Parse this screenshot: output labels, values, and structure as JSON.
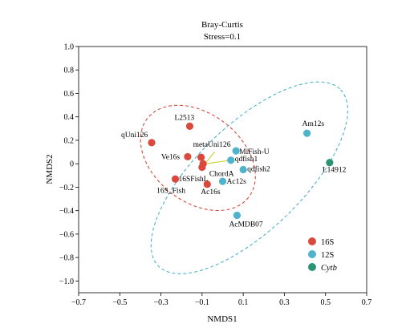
{
  "chart_data": {
    "type": "scatter",
    "title": "Bray-Curtis",
    "subtitle": "Stress=0.1",
    "xlabel": "NMDS1",
    "ylabel": "NMDS2",
    "xlim": [
      -0.7,
      0.7
    ],
    "ylim": [
      -1.1,
      1.0
    ],
    "xticks": [
      "-0.7",
      "-0.5",
      "-0.3",
      "-0.1",
      "0.1",
      "0.3",
      "0.5",
      "0.7"
    ],
    "yticks": [
      "1.0",
      "0.8",
      "0.6",
      "0.4",
      "0.2",
      "0",
      "-0.2",
      "-0.4",
      "-0.6",
      "-0.8",
      "-1.0"
    ],
    "grid": false,
    "legend_position": "bottom-right",
    "colors": {
      "16S": "#d94a3d",
      "12S": "#4fb3cc",
      "Cytb": "#2a9474"
    },
    "legend": [
      {
        "name": "16S",
        "italic": false
      },
      {
        "name": "12S",
        "italic": false
      },
      {
        "name": "Cytb",
        "italic": true
      }
    ],
    "series": [
      {
        "name": "16S",
        "points": [
          {
            "label": "L2513",
            "x": -0.16,
            "y": 0.32
          },
          {
            "label": "qUni126",
            "x": -0.345,
            "y": 0.18
          },
          {
            "label": "Ve16s",
            "x": -0.17,
            "y": 0.06
          },
          {
            "label": "metaUni126",
            "x": -0.105,
            "y": 0.055
          },
          {
            "label": "",
            "x": -0.095,
            "y": 0.0
          },
          {
            "label": "ChordA",
            "x": -0.1,
            "y": -0.03
          },
          {
            "label": "16SFishL",
            "x": -0.23,
            "y": -0.13
          },
          {
            "label": "Ac16s",
            "x": -0.075,
            "y": -0.175
          }
        ]
      },
      {
        "name": "12S",
        "points": [
          {
            "label": "MiFish-U",
            "x": 0.065,
            "y": 0.11
          },
          {
            "label": "qdfish1",
            "x": 0.04,
            "y": 0.03
          },
          {
            "label": "qdfish2",
            "x": 0.1,
            "y": -0.05
          },
          {
            "label": "Ac12s",
            "x": 0.0,
            "y": -0.15
          },
          {
            "label": "AcMDB07",
            "x": 0.07,
            "y": -0.44
          },
          {
            "label": "Am12s",
            "x": 0.41,
            "y": 0.26
          }
        ]
      },
      {
        "name": "Cytb",
        "points": [
          {
            "label": "L14912",
            "x": 0.52,
            "y": 0.01
          }
        ]
      }
    ],
    "annotations": [
      {
        "text": "16S_Fish",
        "x": -0.22,
        "y": -0.22
      }
    ]
  }
}
